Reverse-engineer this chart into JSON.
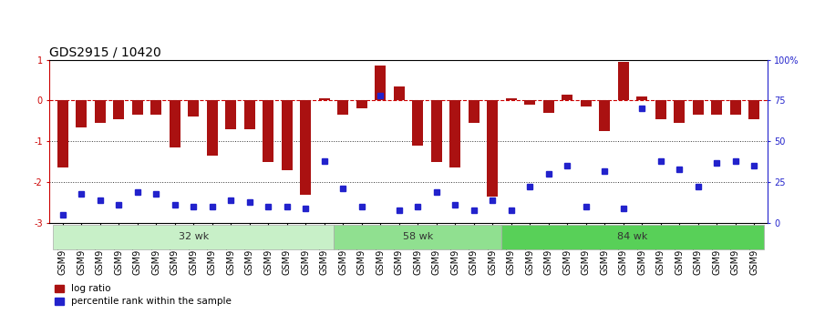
{
  "title": "GDS2915 / 10420",
  "samples": [
    "GSM97277",
    "GSM97278",
    "GSM97279",
    "GSM97280",
    "GSM97281",
    "GSM97282",
    "GSM97283",
    "GSM97284",
    "GSM97285",
    "GSM97286",
    "GSM97287",
    "GSM97288",
    "GSM97289",
    "GSM97290",
    "GSM97291",
    "GSM97292",
    "GSM97293",
    "GSM97294",
    "GSM97295",
    "GSM97296",
    "GSM97297",
    "GSM97298",
    "GSM97299",
    "GSM97300",
    "GSM97301",
    "GSM97302",
    "GSM97303",
    "GSM97304",
    "GSM97305",
    "GSM97306",
    "GSM97307",
    "GSM97308",
    "GSM97309",
    "GSM97310",
    "GSM97311",
    "GSM97312",
    "GSM97313",
    "GSM97314"
  ],
  "log_ratio": [
    -1.65,
    -0.65,
    -0.55,
    -0.45,
    -0.35,
    -0.35,
    -1.15,
    -0.4,
    -1.35,
    -0.7,
    -0.7,
    -1.5,
    -1.7,
    -2.3,
    0.05,
    -0.35,
    -0.2,
    0.85,
    0.35,
    -1.1,
    -1.5,
    -1.65,
    -0.55,
    -2.35,
    0.05,
    -0.1,
    -0.3,
    0.15,
    -0.15,
    -0.75,
    0.95,
    0.1,
    -0.45,
    -0.55,
    -0.35,
    -0.35,
    -0.35,
    -0.45
  ],
  "percentile": [
    5,
    18,
    14,
    11,
    19,
    18,
    11,
    10,
    10,
    14,
    13,
    10,
    10,
    9,
    38,
    21,
    10,
    78,
    8,
    10,
    19,
    11,
    8,
    14,
    8,
    22,
    30,
    35,
    10,
    32,
    9,
    70,
    38,
    33,
    22,
    37,
    38,
    35
  ],
  "groups": [
    {
      "label": "32 wk",
      "start": 0,
      "end": 15,
      "color": "#c8f0c8"
    },
    {
      "label": "58 wk",
      "start": 15,
      "end": 24,
      "color": "#90e090"
    },
    {
      "label": "84 wk",
      "start": 24,
      "end": 38,
      "color": "#58d058"
    }
  ],
  "ylim": [
    -3.0,
    1.0
  ],
  "right_ylim": [
    0,
    100
  ],
  "bar_color": "#aa1111",
  "dot_color": "#2222cc",
  "hline_color": "#cc0000",
  "dotted_line_color": "#333333",
  "bg_color": "#ffffff",
  "title_fontsize": 10,
  "tick_fontsize": 7,
  "legend_items": [
    "log ratio",
    "percentile rank within the sample"
  ],
  "right_yticks": [
    0,
    25,
    50,
    75,
    100
  ],
  "right_yticklabels": [
    "0",
    "25",
    "50",
    "75",
    "100%"
  ]
}
